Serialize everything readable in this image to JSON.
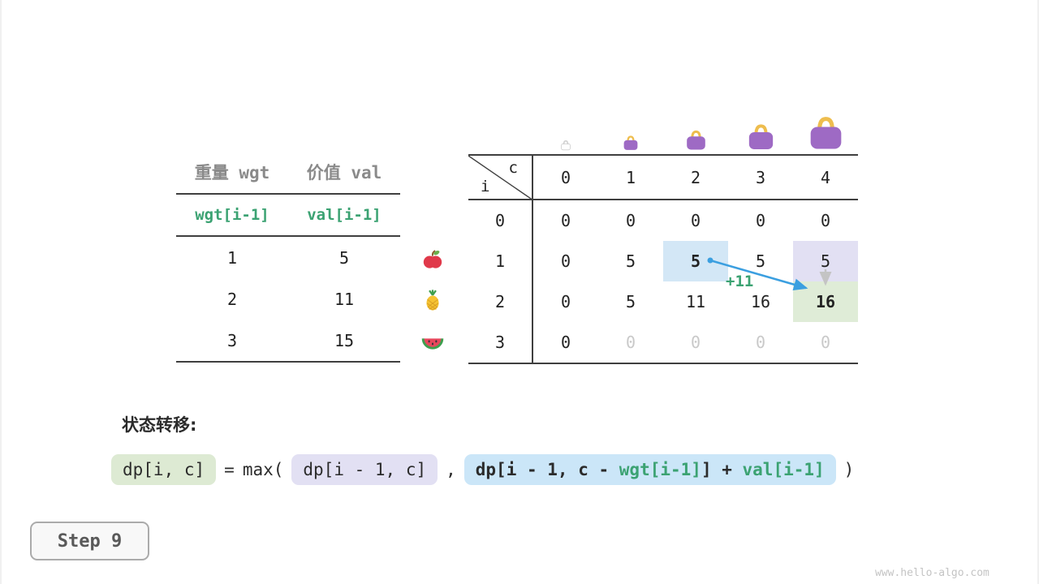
{
  "meta": {
    "watermark": "www.hello-algo.com"
  },
  "step": {
    "label": "Step 9"
  },
  "items_table": {
    "headers": [
      "重量 wgt",
      "价值 val"
    ],
    "formula_row": [
      "wgt[i-1]",
      "val[i-1]"
    ],
    "rows": [
      {
        "wgt": "1",
        "val": "5"
      },
      {
        "wgt": "2",
        "val": "11"
      },
      {
        "wgt": "3",
        "val": "15"
      }
    ]
  },
  "fruits": [
    "apple",
    "pineapple",
    "watermelon"
  ],
  "dp_table": {
    "corner": {
      "row_var": "i",
      "col_var": "c"
    },
    "capacities": [
      "0",
      "1",
      "2",
      "3",
      "4"
    ],
    "rows": [
      {
        "label": "0",
        "cells": [
          "0",
          "0",
          "0",
          "0",
          "0"
        ]
      },
      {
        "label": "1",
        "cells": [
          "0",
          "5",
          "5",
          "5",
          "5"
        ]
      },
      {
        "label": "2",
        "cells": [
          "0",
          "5",
          "11",
          "16",
          "16"
        ]
      },
      {
        "label": "3",
        "cells": [
          "0",
          "0",
          "0",
          "0",
          "0"
        ]
      }
    ],
    "muted_cells": [
      [
        3,
        1
      ],
      [
        3,
        2
      ],
      [
        3,
        3
      ],
      [
        3,
        4
      ]
    ],
    "highlights": [
      {
        "row": 1,
        "col": 2,
        "kind": "source-blue",
        "bold": true
      },
      {
        "row": 1,
        "col": 4,
        "kind": "prev-purple",
        "bold": false
      },
      {
        "row": 2,
        "col": 4,
        "kind": "result-green",
        "bold": true
      }
    ],
    "annotation": "+11"
  },
  "transition": {
    "title": "状态转移:",
    "lhs": "dp[i, c]",
    "equals": "=",
    "max_open": "max(",
    "arg1": "dp[i - 1, c]",
    "comma": ",",
    "arg2_parts": [
      {
        "text": "dp[i - 1, c - ",
        "accent": false
      },
      {
        "text": "wgt[i-1]",
        "accent": true
      },
      {
        "text": "] + ",
        "accent": false
      },
      {
        "text": "val[i-1]",
        "accent": true
      }
    ],
    "close": ")"
  },
  "colors": {
    "accent_green": "#3ba272",
    "arrow_blue": "#3b9fe0",
    "cell_blue_bg": "#d3e7f6",
    "cell_purple_bg": "#e2e0f3",
    "cell_green_bg": "#dfecd7",
    "muted_text": "#c9c9c9",
    "header_gray": "#8a8a8a"
  }
}
